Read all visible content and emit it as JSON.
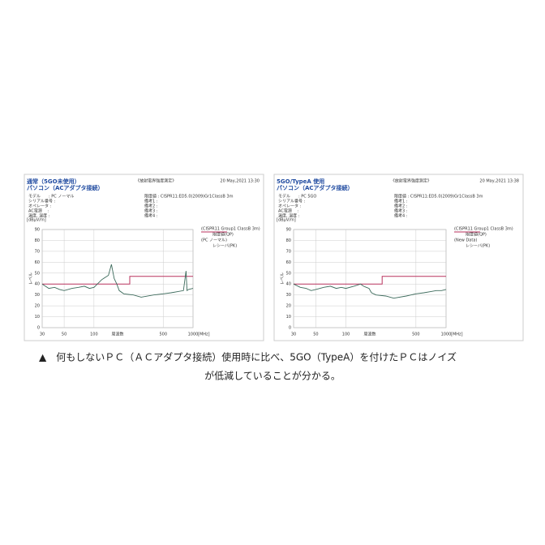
{
  "chart_data": [
    {
      "type": "line",
      "title": "通常（5GO未使用）",
      "subtitle": "パソコン（ACアダプタ接続）",
      "header": "《放射電界強度測定》",
      "date": "20 May,2021 13:30",
      "info_left": [
        "モデル　　: PC ノーマル",
        "シリアル番号 :",
        "オペレータ :",
        "AC電源　 :",
        "温度, 湿度 :"
      ],
      "info_right": [
        "限度値 : CISPR11:ED5.0(2009)Gr1ClassB 3m",
        "備考1 :",
        "備考2 :",
        "備考3 :",
        "備考4 :"
      ],
      "legend_lines": [
        "(CISPR11 Group1 ClassB 3m)",
        "限度値(QP)",
        "(PC ノーマル)",
        "レシーバ(PK)"
      ],
      "y_unit": "[dBμV/m]",
      "y_label": "レベル",
      "x_label": "周波数",
      "x_unit": "[MHz]",
      "xscale": "log",
      "grid": true,
      "xlim": [
        30,
        1000
      ],
      "xticks": [
        30,
        50,
        100,
        500,
        1000
      ],
      "ylim": [
        0,
        90
      ],
      "yticks": [
        0,
        10,
        20,
        30,
        40,
        50,
        60,
        70,
        80,
        90
      ],
      "series": [
        {
          "name": "限度値(QP)",
          "color": "#b8325e",
          "x": [
            30,
            230,
            230,
            1000
          ],
          "values": [
            40,
            40,
            47,
            47
          ]
        },
        {
          "name": "レシーバ(PK)",
          "color": "#3d6b5c",
          "x": [
            30,
            35,
            40,
            45,
            50,
            60,
            70,
            80,
            90,
            100,
            120,
            140,
            150,
            160,
            170,
            180,
            200,
            250,
            300,
            400,
            500,
            600,
            700,
            800,
            850,
            870,
            900,
            1000
          ],
          "values": [
            40,
            36,
            37,
            35,
            34,
            36,
            37,
            38,
            36,
            37,
            44,
            48,
            58,
            45,
            40,
            34,
            31,
            30,
            28,
            30,
            31,
            32,
            33,
            34,
            52,
            34,
            35,
            36
          ]
        }
      ]
    },
    {
      "type": "line",
      "title": "5GO/TypeA 使用",
      "subtitle": "パソコン（ACアダプタ接続）",
      "header": "《放射電界強度測定》",
      "date": "20 May,2021 13:38",
      "info_left": [
        "モデル　　: PC 5GO",
        "シリアル番号 :",
        "オペレータ :",
        "AC電源　 :",
        "温度, 湿度 :"
      ],
      "info_right": [
        "限度値 : CISPR11:ED5.0(2009)Gr1ClassB 3m",
        "備考1 :",
        "備考2 :",
        "備考3 :",
        "備考4 :"
      ],
      "legend_lines": [
        "(CISPR11 Group1 ClassB 3m)",
        "限度値(QP)",
        "(New Data)",
        "レシーバ(PK)"
      ],
      "y_unit": "[dBμV/m]",
      "y_label": "レベル",
      "x_label": "周波数",
      "x_unit": "[MHz]",
      "xscale": "log",
      "grid": true,
      "xlim": [
        30,
        1000
      ],
      "xticks": [
        30,
        50,
        100,
        500,
        1000
      ],
      "ylim": [
        0,
        90
      ],
      "yticks": [
        0,
        10,
        20,
        30,
        40,
        50,
        60,
        70,
        80,
        90
      ],
      "series": [
        {
          "name": "限度値(QP)",
          "color": "#b8325e",
          "x": [
            30,
            230,
            230,
            1000
          ],
          "values": [
            40,
            40,
            47,
            47
          ]
        },
        {
          "name": "レシーバ(PK)",
          "color": "#3d6b5c",
          "x": [
            30,
            35,
            40,
            45,
            50,
            60,
            70,
            80,
            90,
            100,
            120,
            140,
            150,
            160,
            170,
            180,
            200,
            250,
            300,
            400,
            500,
            600,
            700,
            800,
            900,
            1000
          ],
          "values": [
            40,
            37,
            36,
            34,
            35,
            37,
            38,
            36,
            37,
            36,
            38,
            40,
            38,
            37,
            36,
            32,
            30,
            29,
            27,
            29,
            31,
            32,
            33,
            34,
            34,
            35
          ]
        }
      ]
    }
  ],
  "caption": [
    "▲　何もしないＰＣ（ＡＣアダプタ接続）使用時に比べ、5GO（TypeA）を付けたＰＣはノイズ",
    "が低減していることが分かる。"
  ]
}
